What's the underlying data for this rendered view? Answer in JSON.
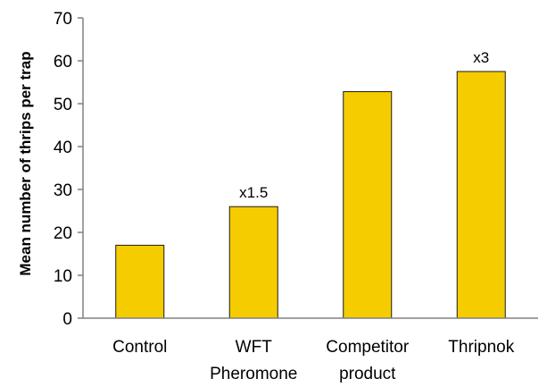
{
  "chart_data": {
    "type": "bar",
    "title": "",
    "xlabel": "",
    "ylabel": "Mean number of  thrips per trap",
    "ylim": [
      0,
      70
    ],
    "yticks": [
      0,
      10,
      20,
      30,
      40,
      50,
      60,
      70
    ],
    "categories": [
      [
        "Control"
      ],
      [
        "WFT",
        "Pheromone"
      ],
      [
        "Competitor",
        "product"
      ],
      [
        "Thripnok"
      ]
    ],
    "values": [
      17,
      26,
      52.8,
      57.5
    ],
    "data_labels": [
      "",
      "x1.5",
      "",
      "x3"
    ],
    "bar_color": "#F5CC00",
    "bar_edge_color": "#1a1a1a",
    "grid": false,
    "legend": "none"
  }
}
